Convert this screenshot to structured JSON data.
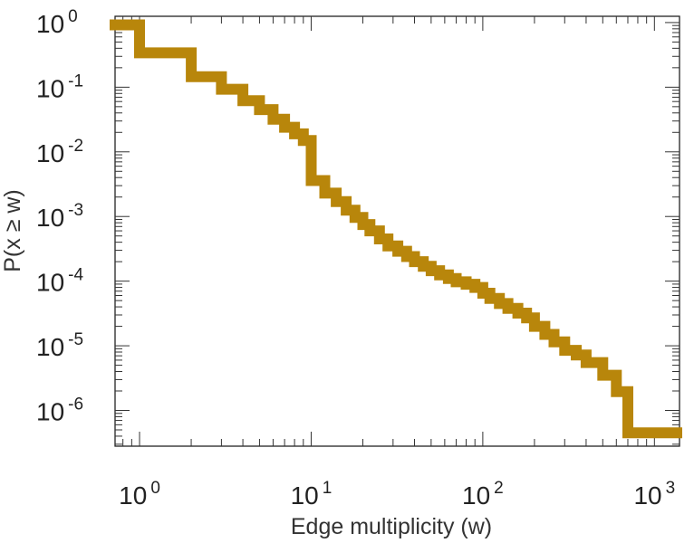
{
  "chart_data": {
    "type": "line",
    "step": true,
    "xlabel": "Edge multiplicity (w)",
    "ylabel": "P(x ≥ w)",
    "xscale": "log",
    "yscale": "log",
    "xlim": [
      0.72,
      1400
    ],
    "ylim": [
      2.8e-07,
      1.25
    ],
    "grid": false,
    "legend": "none",
    "x_ticks": [
      {
        "base": "10",
        "exp": "0",
        "value": 1
      },
      {
        "base": "10",
        "exp": "1",
        "value": 10
      },
      {
        "base": "10",
        "exp": "2",
        "value": 100
      },
      {
        "base": "10",
        "exp": "3",
        "value": 1000
      }
    ],
    "y_ticks": [
      {
        "base": "10",
        "exp": "0",
        "value": 1
      },
      {
        "base": "10",
        "exp": "-1",
        "value": 0.1
      },
      {
        "base": "10",
        "exp": "-2",
        "value": 0.01
      },
      {
        "base": "10",
        "exp": "-3",
        "value": 0.001
      },
      {
        "base": "10",
        "exp": "-4",
        "value": 0.0001
      },
      {
        "base": "10",
        "exp": "-5",
        "value": 1e-05
      },
      {
        "base": "10",
        "exp": "-6",
        "value": 1e-06
      }
    ],
    "series": [
      {
        "color": "#b8860b",
        "x": [
          0.72,
          1,
          2,
          3,
          4,
          5,
          6,
          7,
          8,
          9,
          10,
          12,
          14,
          16,
          18,
          20,
          22,
          25,
          28,
          32,
          36,
          40,
          45,
          50,
          56,
          63,
          70,
          80,
          90,
          100,
          110,
          125,
          140,
          160,
          180,
          200,
          230,
          260,
          300,
          350,
          400,
          500,
          600,
          700,
          1350
        ],
        "y": [
          0.92,
          0.34,
          0.145,
          0.093,
          0.062,
          0.045,
          0.032,
          0.024,
          0.019,
          0.015,
          0.0036,
          0.0023,
          0.0017,
          0.00125,
          0.00097,
          0.00075,
          0.0006,
          0.00045,
          0.00035,
          0.00029,
          0.00024,
          0.0002,
          0.00017,
          0.000145,
          0.000125,
          0.00011,
          9.75e-05,
          8.95e-05,
          8e-05,
          6.5e-05,
          5.4e-05,
          4.5e-05,
          3.8e-05,
          3.2e-05,
          2.7e-05,
          2e-05,
          1.5e-05,
          1.15e-05,
          8.5e-06,
          7.2e-06,
          5.5e-06,
          3.5e-06,
          1.95e-06,
          4.5e-07,
          4.5e-07
        ]
      }
    ]
  }
}
